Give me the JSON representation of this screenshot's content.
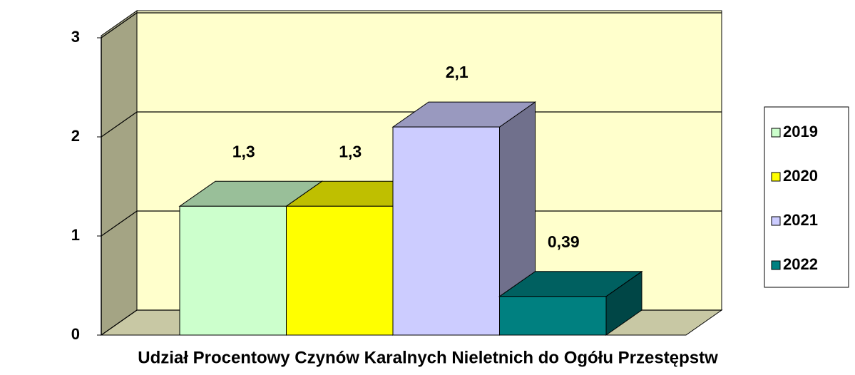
{
  "chart_data": {
    "type": "bar3d",
    "title": "Udział Procentowy Czynów Karalnych Nieletnich do Ogółu Przestępstw",
    "categories": [
      null
    ],
    "series": [
      {
        "name": "2019",
        "color": "#ccffcc",
        "values": [
          1.3
        ],
        "value_labels": [
          "1,3"
        ]
      },
      {
        "name": "2020",
        "color": "#ffff00",
        "values": [
          1.3
        ],
        "value_labels": [
          "1,3"
        ]
      },
      {
        "name": "2021",
        "color": "#ccccff",
        "values": [
          2.1
        ],
        "value_labels": [
          "2,1"
        ]
      },
      {
        "name": "2022",
        "color": "#008080",
        "values": [
          0.39
        ],
        "value_labels": [
          "0,39"
        ]
      }
    ],
    "ylim": [
      0,
      3
    ],
    "yticks": [
      0,
      1,
      2,
      3
    ],
    "grid": true,
    "legend": "right"
  }
}
